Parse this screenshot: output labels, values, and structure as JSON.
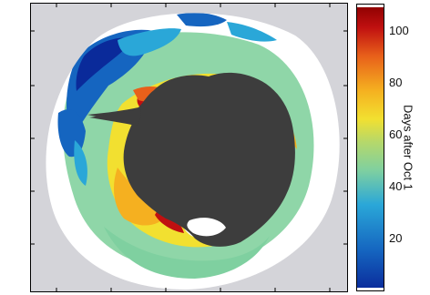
{
  "colorbar": {
    "title": "Days after Oct 1",
    "ticks": [
      {
        "label": "100",
        "value": 100
      },
      {
        "label": "80",
        "value": 80
      },
      {
        "label": "60",
        "value": 60
      },
      {
        "label": "40",
        "value": 40
      },
      {
        "label": "20",
        "value": 20
      }
    ],
    "range": [
      0,
      110
    ],
    "colors": [
      "#0a2a9a",
      "#1565c0",
      "#2aa7d8",
      "#7fd0a0",
      "#b6d86a",
      "#f2e030",
      "#f5b020",
      "#e8601a",
      "#c01010",
      "#8b0000"
    ]
  },
  "map": {
    "background_color": "#d4d4d9",
    "land_color": "#3d3d3d",
    "ice_color": "#ffffff"
  }
}
